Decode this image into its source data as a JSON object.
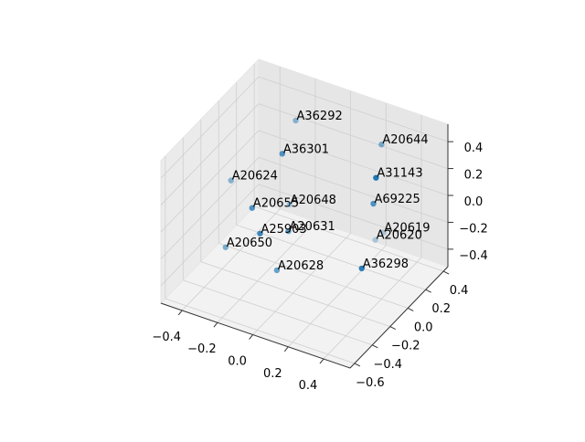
{
  "chart_data": {
    "type": "scatter3d",
    "color": "#1f77b4",
    "depthshade": true,
    "grid": true,
    "xlim": [
      -0.52,
      0.55
    ],
    "ylim": [
      -0.65,
      0.45
    ],
    "zlim": [
      -0.53,
      0.53
    ],
    "xticks": [
      {
        "value": -0.4,
        "label": "−0.4"
      },
      {
        "value": -0.2,
        "label": "−0.2"
      },
      {
        "value": 0,
        "label": "0.0"
      },
      0.2,
      0.4
    ],
    "yticks": [
      {
        "value": -0.6,
        "label": "−0.6"
      },
      {
        "value": -0.4,
        "label": "−0.4"
      },
      {
        "value": -0.2,
        "label": "−0.2"
      },
      {
        "value": 0,
        "label": "0.0"
      },
      0.2,
      0.4
    ],
    "zticks": [
      {
        "value": -0.4,
        "label": "−0.4"
      },
      {
        "value": -0.2,
        "label": "−0.2"
      },
      {
        "value": 0,
        "label": "0.0"
      },
      0.2,
      0.4
    ],
    "labels": [
      "A36292",
      "A36301",
      "A20644",
      "A31143",
      "A20624",
      "A20655",
      "A20648",
      "A69225",
      "A20631",
      "A25903",
      "A20619",
      "A20620",
      "A20650",
      "A20628",
      "A36298"
    ],
    "x": [
      -0.2,
      -0.11,
      0.23,
      0.42,
      -0.4,
      -0.17,
      -0.18,
      0.35,
      -0.02,
      -0.07,
      0.24,
      0.22,
      -0.32,
      -0.03,
      0.45
    ],
    "y": [
      0.23,
      -0.1,
      0.34,
      -0.1,
      -0.1,
      -0.32,
      0.12,
      0.01,
      -0.21,
      -0.43,
      0.34,
      0.29,
      -0.32,
      -0.32,
      -0.32
    ],
    "z": [
      0.37,
      0.39,
      0.31,
      0.45,
      0.06,
      0.11,
      -0.17,
      0.15,
      -0.07,
      0.04,
      -0.34,
      -0.37,
      -0.25,
      -0.29,
      -0.06
    ]
  }
}
